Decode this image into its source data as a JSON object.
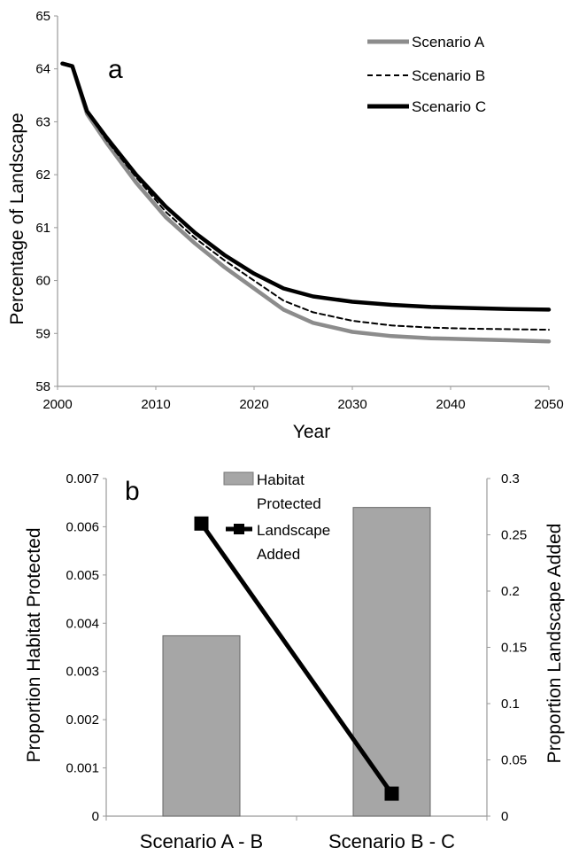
{
  "chart_data": [
    {
      "type": "line",
      "panel_label": "a",
      "xlabel": "Year",
      "ylabel": "Percentage of Landscape",
      "xlim": [
        2000,
        2050
      ],
      "ylim": [
        58,
        65
      ],
      "x_ticks": [
        "2000",
        "2010",
        "2020",
        "2030",
        "2040",
        "2050"
      ],
      "y_ticks": [
        "58",
        "59",
        "60",
        "61",
        "62",
        "63",
        "64",
        "65"
      ],
      "grid": false,
      "legend_position": "top-right",
      "x": [
        2000.5,
        2001.5,
        2003,
        2005,
        2008,
        2011,
        2014,
        2017,
        2020,
        2023,
        2026,
        2030,
        2034,
        2038,
        2042,
        2046,
        2050
      ],
      "series": [
        {
          "name": "Scenario A",
          "style": "solid-gray",
          "color": "#8c8c8c",
          "values": [
            64.1,
            64.05,
            63.15,
            62.6,
            61.85,
            61.2,
            60.7,
            60.25,
            59.85,
            59.45,
            59.2,
            59.03,
            58.95,
            58.91,
            58.89,
            58.87,
            58.85
          ]
        },
        {
          "name": "Scenario B",
          "style": "dashed-black",
          "color": "#000000",
          "values": [
            64.1,
            64.05,
            63.18,
            62.65,
            61.95,
            61.3,
            60.8,
            60.38,
            60.0,
            59.62,
            59.4,
            59.24,
            59.15,
            59.11,
            59.09,
            59.08,
            59.07
          ]
        },
        {
          "name": "Scenario C",
          "style": "solid-black-thick",
          "color": "#000000",
          "values": [
            64.1,
            64.05,
            63.2,
            62.7,
            62.0,
            61.4,
            60.9,
            60.48,
            60.13,
            59.85,
            59.7,
            59.6,
            59.54,
            59.5,
            59.48,
            59.46,
            59.45
          ]
        }
      ]
    },
    {
      "type": "bar+line",
      "panel_label": "b",
      "categories": [
        "Scenario A - B",
        "Scenario B - C"
      ],
      "ylabel": "Proportion Habitat Protected",
      "y2label": "Proportion Landscape Added",
      "ylim": [
        0,
        0.007
      ],
      "y2lim": [
        0,
        0.3
      ],
      "y_ticks": [
        "0",
        "0.001",
        "0.002",
        "0.003",
        "0.004",
        "0.005",
        "0.006",
        "0.007"
      ],
      "y2_ticks": [
        "0",
        "0.05",
        "0.1",
        "0.15",
        "0.2",
        "0.25",
        "0.3"
      ],
      "grid": false,
      "legend_position": "top-center",
      "series": [
        {
          "name": "Habitat Protected",
          "name_lines": [
            "Habitat",
            "Protected"
          ],
          "kind": "bar",
          "axis": "left",
          "color": "#a6a6a6",
          "values": [
            0.00374,
            0.0064
          ]
        },
        {
          "name": "Landscape Added",
          "name_lines": [
            "Landscape",
            "Added"
          ],
          "kind": "line",
          "marker": "square",
          "axis": "right",
          "color": "#000000",
          "values": [
            0.26,
            0.02
          ]
        }
      ]
    }
  ]
}
